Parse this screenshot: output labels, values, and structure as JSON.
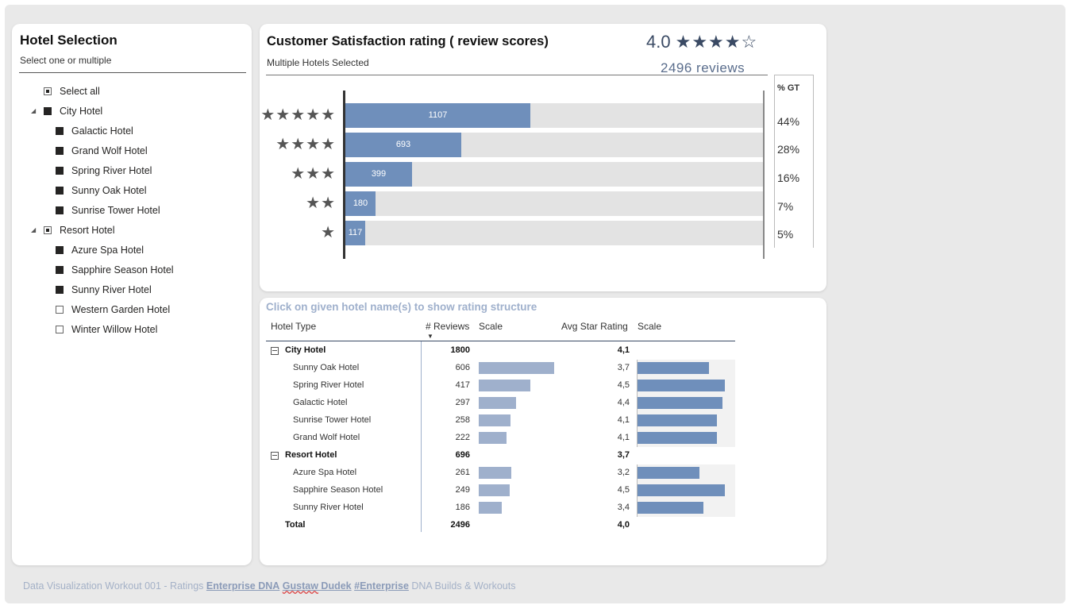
{
  "slicer": {
    "title": "Hotel Selection",
    "subtitle": "Select one or multiple",
    "select_all": "Select all",
    "groups": [
      {
        "label": "City Hotel",
        "state": "full",
        "items": [
          {
            "label": "Galactic Hotel",
            "state": "full"
          },
          {
            "label": "Grand Wolf Hotel",
            "state": "full"
          },
          {
            "label": "Spring River Hotel",
            "state": "full"
          },
          {
            "label": "Sunny Oak Hotel",
            "state": "full"
          },
          {
            "label": "Sunrise Tower Hotel",
            "state": "full"
          }
        ]
      },
      {
        "label": "Resort Hotel",
        "state": "partial",
        "items": [
          {
            "label": "Azure Spa Hotel",
            "state": "full"
          },
          {
            "label": "Sapphire Season Hotel",
            "state": "full"
          },
          {
            "label": "Sunny River Hotel",
            "state": "full"
          },
          {
            "label": "Western Garden Hotel",
            "state": "empty"
          },
          {
            "label": "Winter Willow Hotel",
            "state": "empty"
          }
        ]
      }
    ]
  },
  "rating_chart": {
    "title": "Customer Satisfaction rating ( review scores)",
    "subtitle": "Multiple Hotels Selected",
    "avg_rating": "4.0",
    "avg_stars": "★★★★☆",
    "reviews_total": "2496 reviews",
    "gt_header": "% GT",
    "colors": {
      "bar": "#6f8fbb",
      "track": "#e3e3e3"
    }
  },
  "chart_data": {
    "type": "bar",
    "orientation": "horizontal",
    "categories": [
      "★★★★★",
      "★★★★",
      "★★★",
      "★★",
      "★"
    ],
    "values": [
      1107,
      693,
      399,
      180,
      117
    ],
    "pct_gt": [
      "44%",
      "28%",
      "16%",
      "7%",
      "5%"
    ],
    "xlim": [
      0,
      2496
    ]
  },
  "matrix": {
    "title": "Click on given hotel name(s) to show rating structure",
    "headers": {
      "type": "Hotel Type",
      "reviews": "# Reviews",
      "scale1": "Scale",
      "avg": "Avg Star Rating",
      "scale2": "Scale"
    },
    "rows": [
      {
        "kind": "group",
        "name": "City Hotel",
        "reviews": "1800",
        "avg": "4,1"
      },
      {
        "kind": "item",
        "name": "Sunny Oak Hotel",
        "reviews": "606",
        "avg": "3,7",
        "rev_n": 606,
        "avg_n": 3.7
      },
      {
        "kind": "item",
        "name": "Spring River Hotel",
        "reviews": "417",
        "avg": "4,5",
        "rev_n": 417,
        "avg_n": 4.5
      },
      {
        "kind": "item",
        "name": "Galactic Hotel",
        "reviews": "297",
        "avg": "4,4",
        "rev_n": 297,
        "avg_n": 4.4
      },
      {
        "kind": "item",
        "name": "Sunrise Tower Hotel",
        "reviews": "258",
        "avg": "4,1",
        "rev_n": 258,
        "avg_n": 4.1
      },
      {
        "kind": "item",
        "name": "Grand Wolf Hotel",
        "reviews": "222",
        "avg": "4,1",
        "rev_n": 222,
        "avg_n": 4.1
      },
      {
        "kind": "group",
        "name": "Resort Hotel",
        "reviews": "696",
        "avg": "3,7"
      },
      {
        "kind": "item",
        "name": "Azure Spa Hotel",
        "reviews": "261",
        "avg": "3,2",
        "rev_n": 261,
        "avg_n": 3.2
      },
      {
        "kind": "item",
        "name": "Sapphire Season Hotel",
        "reviews": "249",
        "avg": "4,5",
        "rev_n": 249,
        "avg_n": 4.5
      },
      {
        "kind": "item",
        "name": "Sunny River Hotel",
        "reviews": "186",
        "avg": "3,4",
        "rev_n": 186,
        "avg_n": 3.4
      },
      {
        "kind": "total",
        "name": "Total",
        "reviews": "2496",
        "avg": "4,0"
      }
    ]
  },
  "footer": {
    "prefix": "Data Visualization Workout 001 - Ratings ",
    "link1": "Enterprise DNA",
    "space": " ",
    "link2a": "Gustaw",
    "link2b": " Dudek",
    "gap": "  ",
    "link3": "#Enterprise",
    "suffix": " DNA Builds & Workouts"
  }
}
